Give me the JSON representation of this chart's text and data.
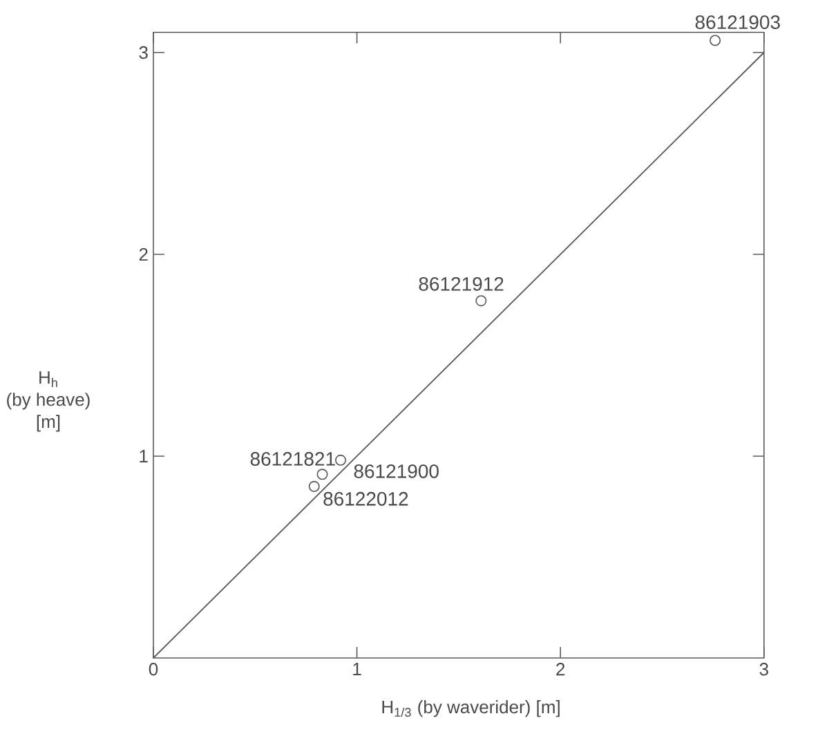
{
  "chart_data": {
    "type": "scatter",
    "xlabel": "H$_{1/3}$ (by waverider) [m]",
    "ylabel": "H$_{h}$ (by heave) [m]",
    "xlim": [
      0,
      3
    ],
    "ylim": [
      0,
      3.1
    ],
    "xticks": [
      0,
      1,
      2,
      3
    ],
    "yticks": [
      1,
      2,
      3
    ],
    "series": [
      {
        "type": "line",
        "x": [
          0,
          3
        ],
        "values": [
          0,
          3
        ],
        "color": "#555555",
        "line_style": "solid",
        "marker": "none"
      },
      {
        "x": [
          0.79,
          0.83,
          0.92,
          1.61,
          2.76
        ],
        "values": [
          0.85,
          0.91,
          0.98,
          1.77,
          3.06
        ],
        "color": "#555555",
        "marker": "circle"
      }
    ],
    "annotations": [
      {
        "text": "86121903",
        "x": 2.76,
        "y": 3.06
      },
      {
        "text": "86121912",
        "x": 1.61,
        "y": 1.77
      },
      {
        "text": "86121821",
        "x": 0.83,
        "y": 0.91
      },
      {
        "text": "86121900",
        "x": 0.92,
        "y": 0.98
      },
      {
        "text": "86122012",
        "x": 0.79,
        "y": 0.85
      }
    ]
  }
}
